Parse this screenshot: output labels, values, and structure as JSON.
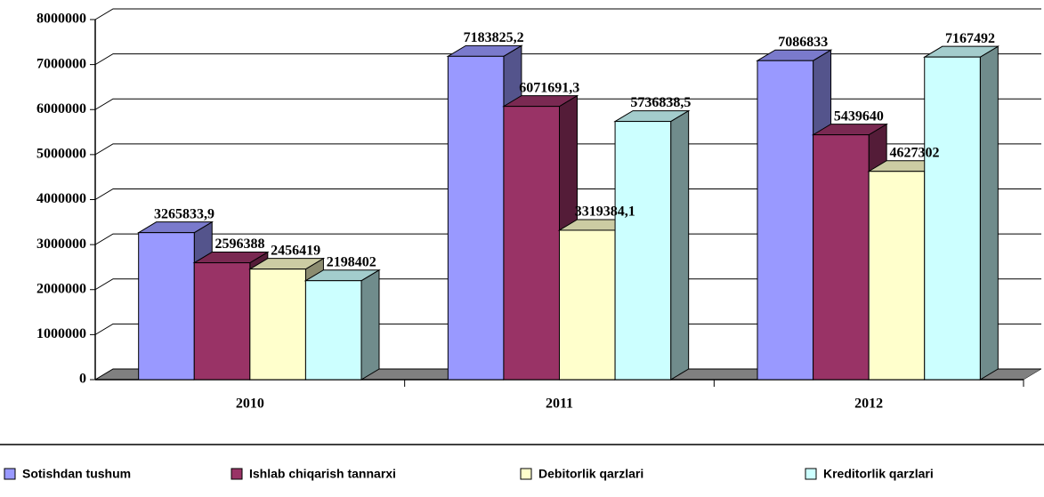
{
  "chart_data": {
    "type": "bar3d",
    "categories": [
      "2010",
      "2011",
      "2012"
    ],
    "series": [
      {
        "name": "Sotishdan tushum",
        "color": "#9999ff",
        "values": [
          3265833.9,
          7183825.2,
          7086833
        ],
        "value_labels": [
          "3265833,9",
          "7183825,2",
          "7086833"
        ]
      },
      {
        "name": "Ishlab chiqarish tannarxi",
        "color": "#993366",
        "values": [
          2596388,
          6071691.3,
          5439640
        ],
        "value_labels": [
          "2596388",
          "6071691,3",
          "5439640"
        ]
      },
      {
        "name": "Debitorlik qarzlari",
        "color": "#ffffcc",
        "values": [
          2456419,
          3319384.1,
          4627302
        ],
        "value_labels": [
          "2456419",
          "3319384,1",
          "4627302"
        ]
      },
      {
        "name": "Kreditorlik qarzlari",
        "color": "#ccffff",
        "values": [
          2198402,
          5736838.5,
          7167492
        ],
        "value_labels": [
          "2198402",
          "5736838,5",
          "7167492"
        ]
      }
    ],
    "ylim": [
      0,
      8000000
    ],
    "yticks": [
      0,
      1000000,
      2000000,
      3000000,
      4000000,
      5000000,
      6000000,
      7000000,
      8000000
    ],
    "grid": true,
    "legend": "bottom"
  }
}
